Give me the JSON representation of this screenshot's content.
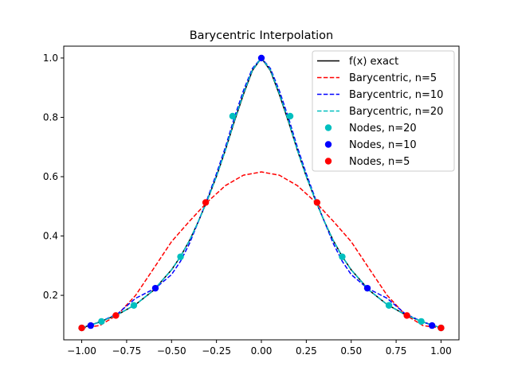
{
  "chart_data": {
    "type": "line",
    "title": "Barycentric Interpolation",
    "xlabel": "",
    "ylabel": "",
    "xlim": [
      -1.1,
      1.1
    ],
    "ylim": [
      0.05,
      1.04
    ],
    "xticks": [
      -1.0,
      -0.75,
      -0.5,
      -0.25,
      0.0,
      0.25,
      0.5,
      0.75,
      1.0
    ],
    "xtick_labels": [
      "−1.00",
      "−0.75",
      "−0.50",
      "−0.25",
      "0.00",
      "0.25",
      "0.50",
      "0.75",
      "1.00"
    ],
    "yticks": [
      0.2,
      0.4,
      0.6,
      0.8,
      1.0
    ],
    "ytick_labels": [
      "0.2",
      "0.4",
      "0.6",
      "0.8",
      "1.0"
    ],
    "grid": false,
    "legend_placement": "top-right",
    "lines": [
      {
        "name": "f(x) exact",
        "color": "#000000",
        "style": "solid",
        "x": [
          -1.0,
          -0.9,
          -0.8,
          -0.7,
          -0.6,
          -0.5,
          -0.45,
          -0.4,
          -0.35,
          -0.3,
          -0.25,
          -0.2,
          -0.15,
          -0.1,
          -0.05,
          0.0,
          0.05,
          0.1,
          0.15,
          0.2,
          0.25,
          0.3,
          0.35,
          0.4,
          0.45,
          0.5,
          0.6,
          0.7,
          0.8,
          0.9,
          1.0
        ],
        "y": [
          0.09,
          0.11,
          0.135,
          0.169,
          0.217,
          0.286,
          0.331,
          0.385,
          0.45,
          0.522,
          0.601,
          0.69,
          0.787,
          0.877,
          0.958,
          1.0,
          0.958,
          0.877,
          0.787,
          0.69,
          0.601,
          0.522,
          0.45,
          0.385,
          0.331,
          0.286,
          0.217,
          0.169,
          0.135,
          0.11,
          0.09
        ]
      },
      {
        "name": "Barycentric, n=5",
        "color": "#ff0000",
        "style": "dashed",
        "x": [
          -1.0,
          -0.9,
          -0.8,
          -0.7,
          -0.6,
          -0.5,
          -0.4,
          -0.3,
          -0.2,
          -0.1,
          0.0,
          0.1,
          0.2,
          0.3,
          0.4,
          0.5,
          0.6,
          0.7,
          0.8,
          0.9,
          1.0
        ],
        "y": [
          0.09,
          0.098,
          0.135,
          0.2,
          0.29,
          0.381,
          0.45,
          0.515,
          0.57,
          0.605,
          0.616,
          0.605,
          0.57,
          0.515,
          0.45,
          0.381,
          0.29,
          0.2,
          0.135,
          0.098,
          0.09
        ]
      },
      {
        "name": "Barycentric, n=10",
        "color": "#0000ff",
        "style": "dashed",
        "x": [
          -1.0,
          -0.95,
          -0.9,
          -0.8,
          -0.7,
          -0.59,
          -0.5,
          -0.45,
          -0.4,
          -0.31,
          -0.25,
          -0.2,
          -0.15,
          -0.1,
          -0.05,
          0.0,
          0.05,
          0.1,
          0.15,
          0.2,
          0.25,
          0.31,
          0.4,
          0.45,
          0.5,
          0.59,
          0.7,
          0.8,
          0.9,
          0.95,
          1.0
        ],
        "y": [
          0.09,
          0.1,
          0.11,
          0.138,
          0.19,
          0.224,
          0.27,
          0.315,
          0.375,
          0.51,
          0.61,
          0.7,
          0.8,
          0.89,
          0.965,
          1.0,
          0.965,
          0.89,
          0.8,
          0.7,
          0.61,
          0.51,
          0.375,
          0.315,
          0.27,
          0.224,
          0.19,
          0.138,
          0.11,
          0.1,
          0.09
        ]
      },
      {
        "name": "Barycentric, n=20",
        "color": "#00bfbf",
        "style": "dashed",
        "x": [
          -1.0,
          -0.9,
          -0.8,
          -0.7,
          -0.6,
          -0.5,
          -0.45,
          -0.4,
          -0.35,
          -0.3,
          -0.25,
          -0.2,
          -0.15,
          -0.1,
          -0.05,
          0.0,
          0.05,
          0.1,
          0.15,
          0.2,
          0.25,
          0.3,
          0.35,
          0.4,
          0.45,
          0.5,
          0.6,
          0.7,
          0.8,
          0.9,
          1.0
        ],
        "y": [
          0.09,
          0.11,
          0.135,
          0.169,
          0.217,
          0.286,
          0.331,
          0.385,
          0.45,
          0.522,
          0.601,
          0.69,
          0.79,
          0.88,
          0.96,
          1.0,
          0.96,
          0.88,
          0.79,
          0.69,
          0.601,
          0.522,
          0.45,
          0.385,
          0.331,
          0.286,
          0.217,
          0.169,
          0.135,
          0.11,
          0.09
        ]
      }
    ],
    "node_sets": [
      {
        "name": "Nodes, n=20",
        "color": "#00bfbf",
        "x": [
          -1.0,
          -0.89,
          -0.71,
          -0.45,
          -0.16,
          0.16,
          0.45,
          0.71,
          0.89,
          1.0
        ],
        "y": [
          0.09,
          0.112,
          0.166,
          0.33,
          0.804,
          0.804,
          0.33,
          0.166,
          0.112,
          0.09
        ]
      },
      {
        "name": "Nodes, n=10",
        "color": "#0000ff",
        "x": [
          -0.95,
          -0.59,
          0.0,
          0.59,
          0.95
        ],
        "y": [
          0.098,
          0.224,
          1.0,
          0.224,
          0.098
        ]
      },
      {
        "name": "Nodes, n=5",
        "color": "#ff0000",
        "x": [
          -1.0,
          -0.81,
          -0.31,
          0.31,
          0.81,
          1.0
        ],
        "y": [
          0.09,
          0.132,
          0.513,
          0.513,
          0.132,
          0.09
        ]
      }
    ],
    "legend": [
      {
        "label": "f(x) exact",
        "kind": "line",
        "color": "#000000",
        "style": "solid"
      },
      {
        "label": "Barycentric, n=5",
        "kind": "line",
        "color": "#ff0000",
        "style": "dashed"
      },
      {
        "label": "Barycentric, n=10",
        "kind": "line",
        "color": "#0000ff",
        "style": "dashed"
      },
      {
        "label": "Barycentric, n=20",
        "kind": "line",
        "color": "#00bfbf",
        "style": "dashed"
      },
      {
        "label": "Nodes, n=20",
        "kind": "marker",
        "color": "#00bfbf"
      },
      {
        "label": "Nodes, n=10",
        "kind": "marker",
        "color": "#0000ff"
      },
      {
        "label": "Nodes, n=5",
        "kind": "marker",
        "color": "#ff0000"
      }
    ]
  }
}
